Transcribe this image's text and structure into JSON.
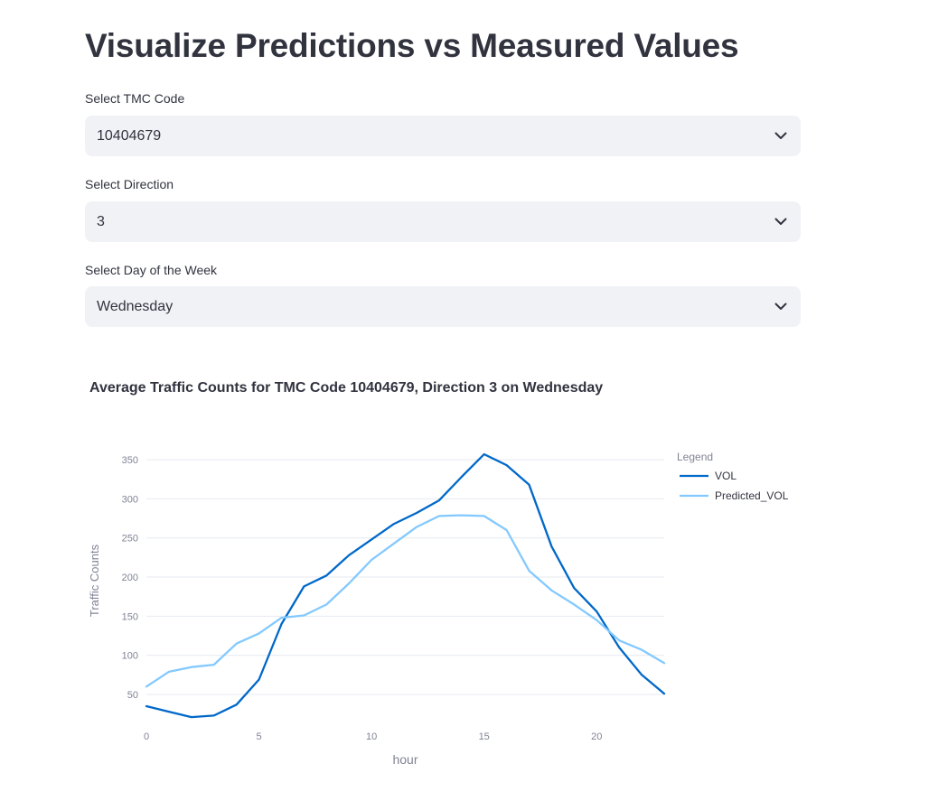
{
  "page": {
    "title": "Visualize Predictions vs Measured Values"
  },
  "selects": {
    "tmc": {
      "label": "Select TMC Code",
      "value": "10404679"
    },
    "direction": {
      "label": "Select Direction",
      "value": "3"
    },
    "day": {
      "label": "Select Day of the Week",
      "value": "Wednesday"
    }
  },
  "icons": {
    "dropdown": "chevron-down-icon"
  },
  "chart": {
    "title": "Average Traffic Counts for TMC Code 10404679, Direction 3 on Wednesday"
  },
  "chart_data": {
    "type": "line",
    "title": "Average Traffic Counts for TMC Code 10404679, Direction 3 on Wednesday",
    "xlabel": "hour",
    "ylabel": "Traffic Counts",
    "legend_title": "Legend",
    "legend_position": "right",
    "grid": true,
    "xlim": [
      0,
      23
    ],
    "ylim": [
      20,
      372
    ],
    "x_ticks": [
      0,
      5,
      10,
      15,
      20
    ],
    "y_ticks": [
      50,
      100,
      150,
      200,
      250,
      300,
      350
    ],
    "x": [
      0,
      1,
      2,
      3,
      4,
      5,
      6,
      7,
      8,
      9,
      10,
      11,
      12,
      13,
      14,
      15,
      16,
      17,
      18,
      19,
      20,
      21,
      22,
      23
    ],
    "series": [
      {
        "name": "VOL",
        "color": "#0068c9",
        "values": [
          35,
          28,
          21,
          23,
          37,
          69,
          140,
          188,
          202,
          228,
          248,
          268,
          282,
          298,
          328,
          357,
          343,
          318,
          239,
          186,
          156,
          110,
          75,
          51
        ]
      },
      {
        "name": "Predicted_VOL",
        "color": "#83c9ff",
        "values": [
          60,
          79,
          85,
          88,
          115,
          128,
          148,
          151,
          165,
          192,
          222,
          243,
          264,
          278,
          279,
          278,
          260,
          208,
          183,
          165,
          145,
          119,
          107,
          90
        ]
      }
    ]
  }
}
